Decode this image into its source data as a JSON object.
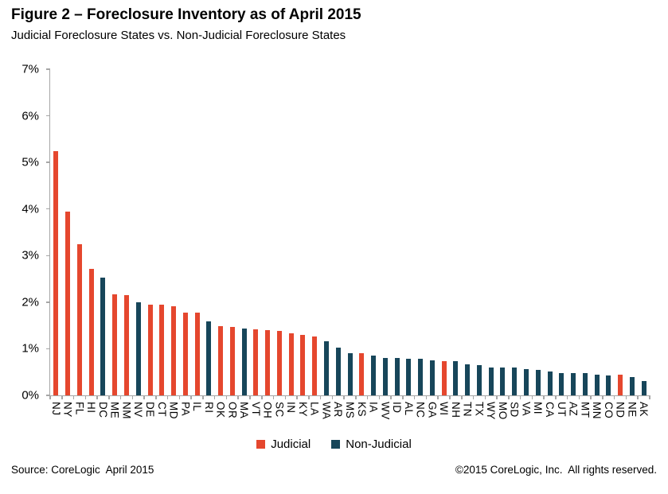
{
  "header": {
    "title": "Figure 2 – Foreclosure Inventory as of April 2015",
    "subtitle": "Judicial Foreclosure States vs. Non-Judicial Foreclosure States"
  },
  "legend": {
    "judicial_label": "Judicial",
    "non_judicial_label": "Non-Judicial",
    "position": "bottom"
  },
  "footer": {
    "source": "Source: CoreLogic  April 2015",
    "copyright": "©2015 CoreLogic, Inc.  All rights reserved."
  },
  "colors": {
    "judicial": "#e5472e",
    "non_judicial": "#17465a",
    "axis": "#a6a6a6",
    "text": "#000000"
  },
  "chart_data": {
    "type": "bar",
    "title": "Figure 2 – Foreclosure Inventory as of April 2015",
    "subtitle": "Judicial Foreclosure States vs. Non-Judicial Foreclosure States",
    "xlabel": "",
    "ylabel": "",
    "ylim": [
      0,
      7
    ],
    "grid": false,
    "y_tick_labels": [
      "0%",
      "1%",
      "2%",
      "3%",
      "4%",
      "5%",
      "6%",
      "7%"
    ],
    "series_names": [
      "Judicial",
      "Non-Judicial"
    ],
    "categories": [
      "NJ",
      "NY",
      "FL",
      "HI",
      "DC",
      "ME",
      "NM",
      "NV",
      "DE",
      "CT",
      "MD",
      "PA",
      "IL",
      "RI",
      "OK",
      "OR",
      "MA",
      "VT",
      "OH",
      "SC",
      "IN",
      "KY",
      "LA",
      "WA",
      "AR",
      "MS",
      "KS",
      "IA",
      "WV",
      "ID",
      "AL",
      "NC",
      "GA",
      "WI",
      "NH",
      "TN",
      "TX",
      "WY",
      "MO",
      "SD",
      "VA",
      "MI",
      "CA",
      "UT",
      "AZ",
      "MT",
      "MN",
      "CO",
      "ND",
      "NE",
      "AK"
    ],
    "points": [
      {
        "state": "NJ",
        "value": 5.25,
        "group": "judicial"
      },
      {
        "state": "NY",
        "value": 3.95,
        "group": "judicial"
      },
      {
        "state": "FL",
        "value": 3.25,
        "group": "judicial"
      },
      {
        "state": "HI",
        "value": 2.72,
        "group": "judicial"
      },
      {
        "state": "DC",
        "value": 2.52,
        "group": "non_judicial"
      },
      {
        "state": "ME",
        "value": 2.17,
        "group": "judicial"
      },
      {
        "state": "NM",
        "value": 2.16,
        "group": "judicial"
      },
      {
        "state": "NV",
        "value": 2.0,
        "group": "non_judicial"
      },
      {
        "state": "DE",
        "value": 1.95,
        "group": "judicial"
      },
      {
        "state": "CT",
        "value": 1.94,
        "group": "judicial"
      },
      {
        "state": "MD",
        "value": 1.92,
        "group": "judicial"
      },
      {
        "state": "PA",
        "value": 1.78,
        "group": "judicial"
      },
      {
        "state": "IL",
        "value": 1.77,
        "group": "judicial"
      },
      {
        "state": "RI",
        "value": 1.58,
        "group": "non_judicial"
      },
      {
        "state": "OK",
        "value": 1.48,
        "group": "judicial"
      },
      {
        "state": "OR",
        "value": 1.47,
        "group": "judicial"
      },
      {
        "state": "MA",
        "value": 1.43,
        "group": "non_judicial"
      },
      {
        "state": "VT",
        "value": 1.41,
        "group": "judicial"
      },
      {
        "state": "OH",
        "value": 1.4,
        "group": "judicial"
      },
      {
        "state": "SC",
        "value": 1.39,
        "group": "judicial"
      },
      {
        "state": "IN",
        "value": 1.33,
        "group": "judicial"
      },
      {
        "state": "KY",
        "value": 1.3,
        "group": "judicial"
      },
      {
        "state": "LA",
        "value": 1.26,
        "group": "judicial"
      },
      {
        "state": "WA",
        "value": 1.16,
        "group": "non_judicial"
      },
      {
        "state": "AR",
        "value": 1.03,
        "group": "non_judicial"
      },
      {
        "state": "MS",
        "value": 0.91,
        "group": "non_judicial"
      },
      {
        "state": "KS",
        "value": 0.9,
        "group": "judicial"
      },
      {
        "state": "IA",
        "value": 0.86,
        "group": "non_judicial"
      },
      {
        "state": "WV",
        "value": 0.8,
        "group": "non_judicial"
      },
      {
        "state": "ID",
        "value": 0.8,
        "group": "non_judicial"
      },
      {
        "state": "AL",
        "value": 0.78,
        "group": "non_judicial"
      },
      {
        "state": "NC",
        "value": 0.78,
        "group": "non_judicial"
      },
      {
        "state": "GA",
        "value": 0.76,
        "group": "non_judicial"
      },
      {
        "state": "WI",
        "value": 0.74,
        "group": "judicial"
      },
      {
        "state": "NH",
        "value": 0.74,
        "group": "non_judicial"
      },
      {
        "state": "TN",
        "value": 0.67,
        "group": "non_judicial"
      },
      {
        "state": "TX",
        "value": 0.65,
        "group": "non_judicial"
      },
      {
        "state": "WY",
        "value": 0.6,
        "group": "non_judicial"
      },
      {
        "state": "MO",
        "value": 0.59,
        "group": "non_judicial"
      },
      {
        "state": "SD",
        "value": 0.59,
        "group": "non_judicial"
      },
      {
        "state": "VA",
        "value": 0.56,
        "group": "non_judicial"
      },
      {
        "state": "MI",
        "value": 0.54,
        "group": "non_judicial"
      },
      {
        "state": "CA",
        "value": 0.51,
        "group": "non_judicial"
      },
      {
        "state": "UT",
        "value": 0.48,
        "group": "non_judicial"
      },
      {
        "state": "AZ",
        "value": 0.47,
        "group": "non_judicial"
      },
      {
        "state": "MT",
        "value": 0.47,
        "group": "non_judicial"
      },
      {
        "state": "MN",
        "value": 0.45,
        "group": "non_judicial"
      },
      {
        "state": "CO",
        "value": 0.43,
        "group": "non_judicial"
      },
      {
        "state": "ND",
        "value": 0.44,
        "group": "judicial"
      },
      {
        "state": "NE",
        "value": 0.39,
        "group": "non_judicial"
      },
      {
        "state": "AK",
        "value": 0.31,
        "group": "non_judicial"
      }
    ]
  }
}
